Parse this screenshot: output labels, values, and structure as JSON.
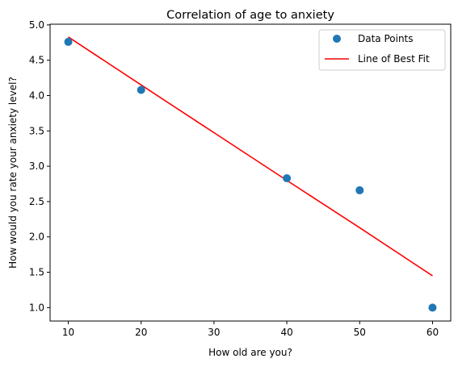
{
  "chart_data": {
    "type": "scatter",
    "title": "Correlation of age to anxiety",
    "xlabel": "How old are you?",
    "ylabel": "How would you rate your anxiety level?",
    "xlim": [
      7.5,
      62.5
    ],
    "ylim": [
      0.81,
      5.01
    ],
    "xticks": [
      10,
      20,
      30,
      40,
      50,
      60
    ],
    "yticks": [
      1.0,
      1.5,
      2.0,
      2.5,
      3.0,
      3.5,
      4.0,
      4.5,
      5.0
    ],
    "grid": false,
    "legend_position": "top-right",
    "series": [
      {
        "name": "Data Points",
        "kind": "scatter",
        "color": "#1f77b4",
        "x": [
          10,
          20,
          40,
          50,
          60
        ],
        "y": [
          4.76,
          4.08,
          2.83,
          2.66,
          1.0
        ]
      },
      {
        "name": "Line of Best Fit",
        "kind": "line",
        "color": "#ff0000",
        "x": [
          10,
          20,
          40,
          50,
          60
        ],
        "y": [
          4.83,
          4.15,
          2.8,
          2.13,
          1.45
        ]
      }
    ]
  }
}
